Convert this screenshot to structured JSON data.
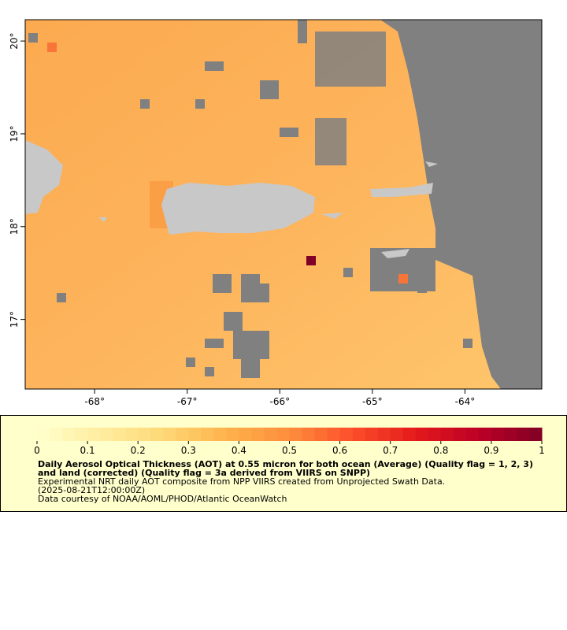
{
  "map": {
    "xlim": [
      -68.75,
      -63.17
    ],
    "ylim": [
      16.25,
      20.23
    ],
    "xticks": [
      {
        "value": -68,
        "label": "-68°"
      },
      {
        "value": -67,
        "label": "-67°"
      },
      {
        "value": -66,
        "label": "-66°"
      },
      {
        "value": -65,
        "label": "-65°"
      },
      {
        "value": -64,
        "label": "-64°"
      }
    ],
    "yticks": [
      {
        "value": 17,
        "label": "17°"
      },
      {
        "value": 18,
        "label": "18°"
      },
      {
        "value": 19,
        "label": "19°"
      },
      {
        "value": 20,
        "label": "20°"
      }
    ]
  },
  "colorbar": {
    "range": [
      0,
      1
    ],
    "ticks": [
      0,
      0.1,
      0.2,
      0.3,
      0.4,
      0.5,
      0.6,
      0.7,
      0.8,
      0.9,
      1
    ],
    "colors": [
      "#ffffcc",
      "#ffeda0",
      "#fed976",
      "#feb24c",
      "#fd8d3c",
      "#fc4e2a",
      "#e31a1c",
      "#bd0026",
      "#800026"
    ]
  },
  "caption": {
    "title": "Daily Aerosol Optical Thickness (AOT) at 0.55 micron for both ocean (Average) (Quality flag = 1, 2, 3) and land (corrected) (Quality flag = 3a derived from VIIRS on SNPP)",
    "lines": [
      "Experimental NRT daily AOT composite from NPP VIIRS created from Unprojected Swath Data.",
      "(2025-08-21T12:00:00Z)",
      "Data courtesy of NOAA/AOML/PHOD/Atlantic OceanWatch"
    ]
  }
}
